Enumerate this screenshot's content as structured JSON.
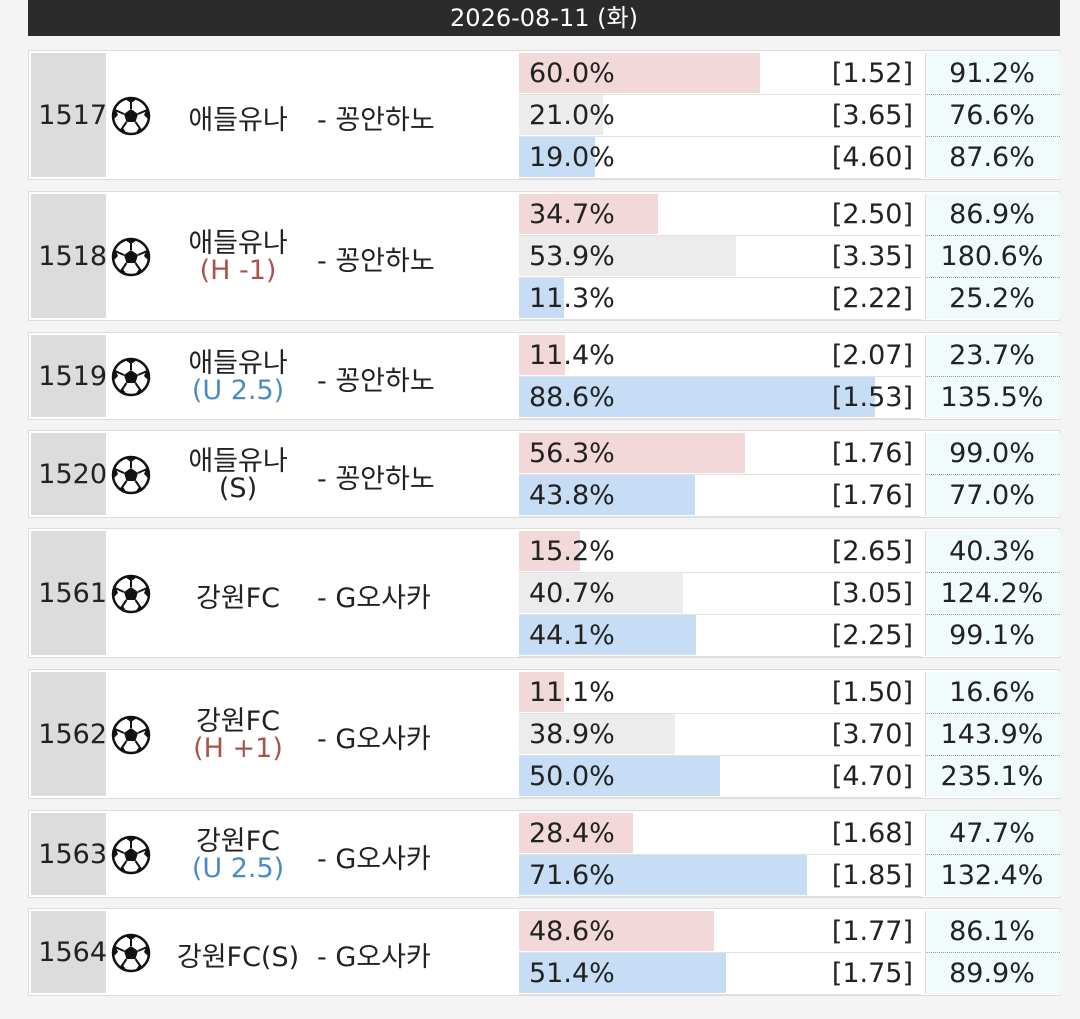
{
  "header": {
    "date": "2026-08-11 (화)"
  },
  "bar_colors": {
    "first": "#f2d8d8",
    "middle": "#ececec",
    "last": "#c7ddf6"
  },
  "matches": [
    {
      "id": "1517",
      "home": "애들유나",
      "away": "- 꽁안하노",
      "outcomes": [
        {
          "pct": 60.0,
          "pct_label": "60.0%",
          "odds": "[1.52]",
          "ret": "91.2%"
        },
        {
          "pct": 21.0,
          "pct_label": "21.0%",
          "odds": "[3.65]",
          "ret": "76.6%"
        },
        {
          "pct": 19.0,
          "pct_label": "19.0%",
          "odds": "[4.60]",
          "ret": "87.6%"
        }
      ]
    },
    {
      "id": "1518",
      "home": "애들유나",
      "sub": "(H -1)",
      "sub_color": "#a8544c",
      "away": "- 꽁안하노",
      "outcomes": [
        {
          "pct": 34.7,
          "pct_label": "34.7%",
          "odds": "[2.50]",
          "ret": "86.9%"
        },
        {
          "pct": 53.9,
          "pct_label": "53.9%",
          "odds": "[3.35]",
          "ret": "180.6%"
        },
        {
          "pct": 11.3,
          "pct_label": "11.3%",
          "odds": "[2.22]",
          "ret": "25.2%"
        }
      ]
    },
    {
      "id": "1519",
      "home": "애들유나",
      "sub": "(U 2.5)",
      "sub_color": "#4a8cc2",
      "away": "- 꽁안하노",
      "outcomes": [
        {
          "pct": 11.4,
          "pct_label": "11.4%",
          "odds": "[2.07]",
          "ret": "23.7%"
        },
        {
          "pct": 88.6,
          "pct_label": "88.6%",
          "odds": "[1.53]",
          "ret": "135.5%"
        }
      ]
    },
    {
      "id": "1520",
      "home": "애들유나",
      "sub": "(S)",
      "sub_color": "#222222",
      "away": "- 꽁안하노",
      "outcomes": [
        {
          "pct": 56.3,
          "pct_label": "56.3%",
          "odds": "[1.76]",
          "ret": "99.0%"
        },
        {
          "pct": 43.8,
          "pct_label": "43.8%",
          "odds": "[1.76]",
          "ret": "77.0%"
        }
      ]
    },
    {
      "id": "1561",
      "home": "강원FC",
      "away": "- G오사카",
      "outcomes": [
        {
          "pct": 15.2,
          "pct_label": "15.2%",
          "odds": "[2.65]",
          "ret": "40.3%"
        },
        {
          "pct": 40.7,
          "pct_label": "40.7%",
          "odds": "[3.05]",
          "ret": "124.2%"
        },
        {
          "pct": 44.1,
          "pct_label": "44.1%",
          "odds": "[2.25]",
          "ret": "99.1%"
        }
      ]
    },
    {
      "id": "1562",
      "home": "강원FC",
      "sub": "(H +1)",
      "sub_color": "#a8544c",
      "away": "- G오사카",
      "outcomes": [
        {
          "pct": 11.1,
          "pct_label": "11.1%",
          "odds": "[1.50]",
          "ret": "16.6%"
        },
        {
          "pct": 38.9,
          "pct_label": "38.9%",
          "odds": "[3.70]",
          "ret": "143.9%"
        },
        {
          "pct": 50.0,
          "pct_label": "50.0%",
          "odds": "[4.70]",
          "ret": "235.1%"
        }
      ]
    },
    {
      "id": "1563",
      "home": "강원FC",
      "sub": "(U 2.5)",
      "sub_color": "#4a8cc2",
      "away": "- G오사카",
      "outcomes": [
        {
          "pct": 28.4,
          "pct_label": "28.4%",
          "odds": "[1.68]",
          "ret": "47.7%"
        },
        {
          "pct": 71.6,
          "pct_label": "71.6%",
          "odds": "[1.85]",
          "ret": "132.4%"
        }
      ]
    },
    {
      "id": "1564",
      "home": "강원FC(S)",
      "away": "- G오사카",
      "outcomes": [
        {
          "pct": 48.6,
          "pct_label": "48.6%",
          "odds": "[1.77]",
          "ret": "86.1%"
        },
        {
          "pct": 51.4,
          "pct_label": "51.4%",
          "odds": "[1.75]",
          "ret": "89.9%"
        }
      ]
    }
  ]
}
